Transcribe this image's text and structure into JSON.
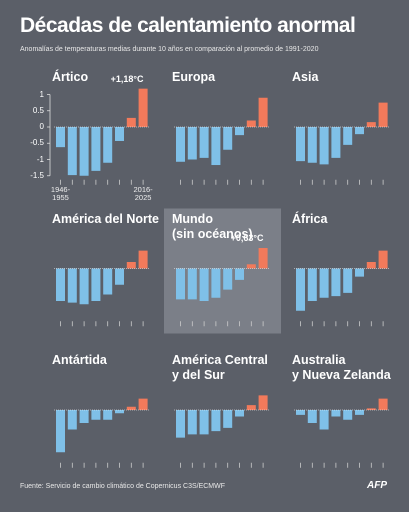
{
  "header": {
    "title": "Décadas de calentamiento anormal",
    "subtitle": "Anomalías de temperaturas medias durante 10 años en comparación al promedio de 1991-2020"
  },
  "footer": {
    "source": "Fuente: Servicio de cambio climático de Copernicus C3S/ECMWF",
    "logo": "AFP"
  },
  "chart_data": [
    {
      "type": "bar",
      "title": [
        "Ártico"
      ],
      "categories": [
        "1946-1955",
        null,
        null,
        null,
        null,
        null,
        null,
        "2016-2025"
      ],
      "values": [
        -0.62,
        -1.48,
        -1.5,
        -1.35,
        -1.1,
        -0.43,
        0.28,
        1.18
      ],
      "value_labels": [
        null,
        null,
        null,
        null,
        null,
        null,
        null,
        "+1,18°C"
      ],
      "ylim": [
        -1.5,
        1.2
      ],
      "yticks": [
        1,
        0.5,
        0,
        -0.5,
        -1,
        -1.5
      ],
      "negative_color": "#7fc0e8",
      "positive_color": "#f27a5b"
    },
    {
      "type": "bar",
      "title": [
        "Europa"
      ],
      "values": [
        -1.07,
        -1.0,
        -0.95,
        -1.17,
        -0.7,
        -0.25,
        0.2,
        0.9
      ],
      "ylim": [
        -1.5,
        1.2
      ],
      "negative_color": "#7fc0e8",
      "positive_color": "#f27a5b"
    },
    {
      "type": "bar",
      "title": [
        "Asia"
      ],
      "values": [
        -1.05,
        -1.1,
        -1.15,
        -0.95,
        -0.55,
        -0.22,
        0.15,
        0.75
      ],
      "ylim": [
        -1.5,
        1.2
      ],
      "negative_color": "#7fc0e8",
      "positive_color": "#f27a5b"
    },
    {
      "type": "bar",
      "title": [
        "América del Norte"
      ],
      "values": [
        -1.0,
        -1.05,
        -1.1,
        -1.0,
        -0.8,
        -0.5,
        0.2,
        0.55
      ],
      "ylim": [
        -1.5,
        1.2
      ],
      "negative_color": "#7fc0e8",
      "positive_color": "#f27a5b"
    },
    {
      "type": "bar",
      "title": [
        "Mundo",
        "(sin océanos)"
      ],
      "values": [
        -0.95,
        -0.95,
        -1.0,
        -0.9,
        -0.65,
        -0.35,
        0.13,
        0.63
      ],
      "value_labels": [
        null,
        null,
        null,
        null,
        null,
        null,
        null,
        "+0,63°C"
      ],
      "highlight": true,
      "ylim": [
        -1.5,
        1.2
      ],
      "negative_color": "#7fc0e8",
      "positive_color": "#f27a5b"
    },
    {
      "type": "bar",
      "title": [
        "África"
      ],
      "values": [
        -1.3,
        -1.0,
        -0.9,
        -0.85,
        -0.75,
        -0.25,
        0.2,
        0.55
      ],
      "ylim": [
        -1.5,
        1.2
      ],
      "negative_color": "#7fc0e8",
      "positive_color": "#f27a5b"
    },
    {
      "type": "bar",
      "title": [
        "Antártida"
      ],
      "values": [
        -1.3,
        -0.6,
        -0.4,
        -0.3,
        -0.3,
        -0.1,
        0.1,
        0.35
      ],
      "ylim": [
        -1.5,
        1.2
      ],
      "negative_color": "#7fc0e8",
      "positive_color": "#f27a5b"
    },
    {
      "type": "bar",
      "title": [
        "América Central",
        "y del Sur"
      ],
      "values": [
        -0.85,
        -0.75,
        -0.75,
        -0.65,
        -0.55,
        -0.2,
        0.15,
        0.45
      ],
      "ylim": [
        -1.5,
        1.2
      ],
      "negative_color": "#7fc0e8",
      "positive_color": "#f27a5b"
    },
    {
      "type": "bar",
      "title": [
        "Australia",
        "y Nueva Zelanda"
      ],
      "values": [
        -0.15,
        -0.4,
        -0.6,
        -0.2,
        -0.3,
        -0.15,
        0.05,
        0.35
      ],
      "ylim": [
        -1.5,
        1.2
      ],
      "negative_color": "#7fc0e8",
      "positive_color": "#f27a5b"
    }
  ]
}
